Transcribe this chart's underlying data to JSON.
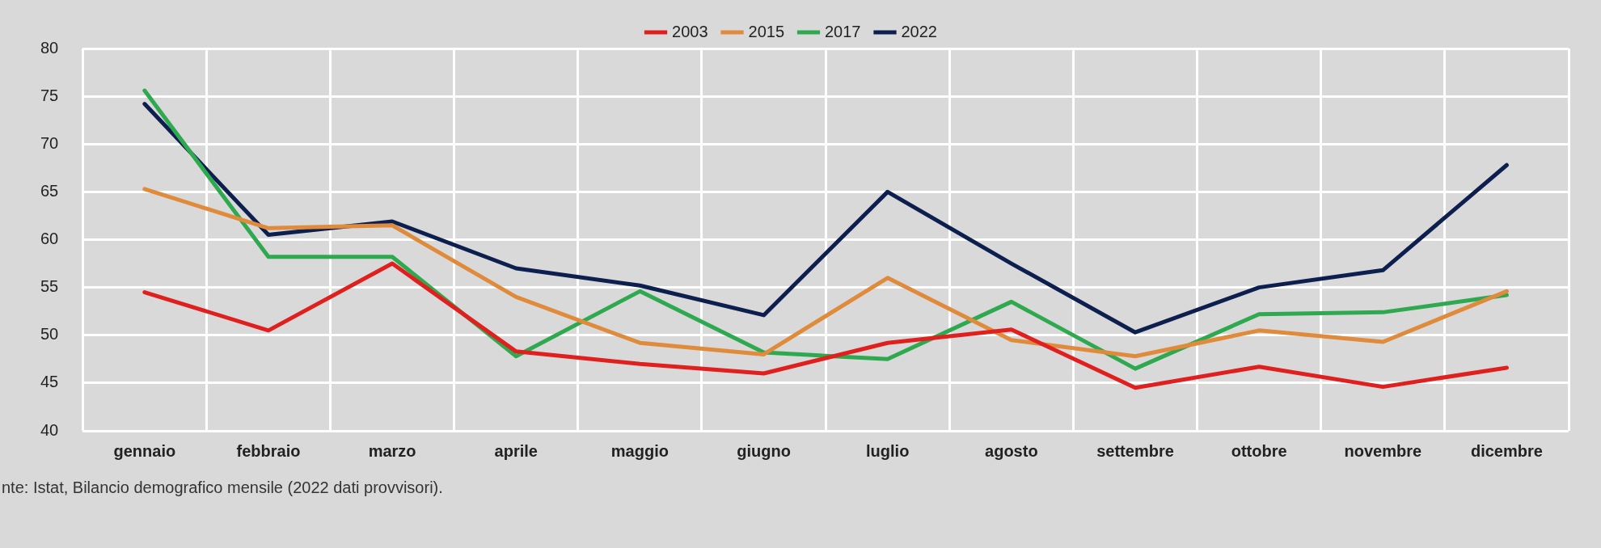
{
  "chart_data": {
    "type": "line",
    "categories": [
      "gennaio",
      "febbraio",
      "marzo",
      "aprile",
      "maggio",
      "giugno",
      "luglio",
      "agosto",
      "settembre",
      "ottobre",
      "novembre",
      "dicembre"
    ],
    "series": [
      {
        "name": "2003",
        "color": "#e0201f",
        "values": [
          54.5,
          50.5,
          57.5,
          48.3,
          47,
          46,
          49.2,
          50.6,
          44.5,
          46.7,
          44.6,
          46.6
        ]
      },
      {
        "name": "2015",
        "color": "#e08a3c",
        "values": [
          65.3,
          61.2,
          61.5,
          54,
          49.2,
          48,
          56,
          49.5,
          47.8,
          50.5,
          49.3,
          54.6
        ]
      },
      {
        "name": "2017",
        "color": "#2ea94f",
        "values": [
          75.6,
          58.2,
          58.2,
          47.8,
          54.6,
          48.2,
          47.5,
          53.5,
          46.5,
          52.2,
          52.4,
          54.2
        ]
      },
      {
        "name": "2022",
        "color": "#0d1f4f",
        "values": [
          74.2,
          60.5,
          61.9,
          57,
          55.2,
          52.1,
          65,
          57.5,
          50.3,
          55,
          56.8,
          67.8
        ]
      }
    ],
    "ylim": [
      40,
      80
    ],
    "yticks": [
      40,
      45,
      50,
      55,
      60,
      65,
      70,
      75,
      80
    ],
    "grid": true,
    "legend": "top",
    "marker": "none",
    "line_style": "solid",
    "annotations": [
      "nte: Istat, Bilancio demografico mensile (2022 dati provvisori)."
    ]
  }
}
